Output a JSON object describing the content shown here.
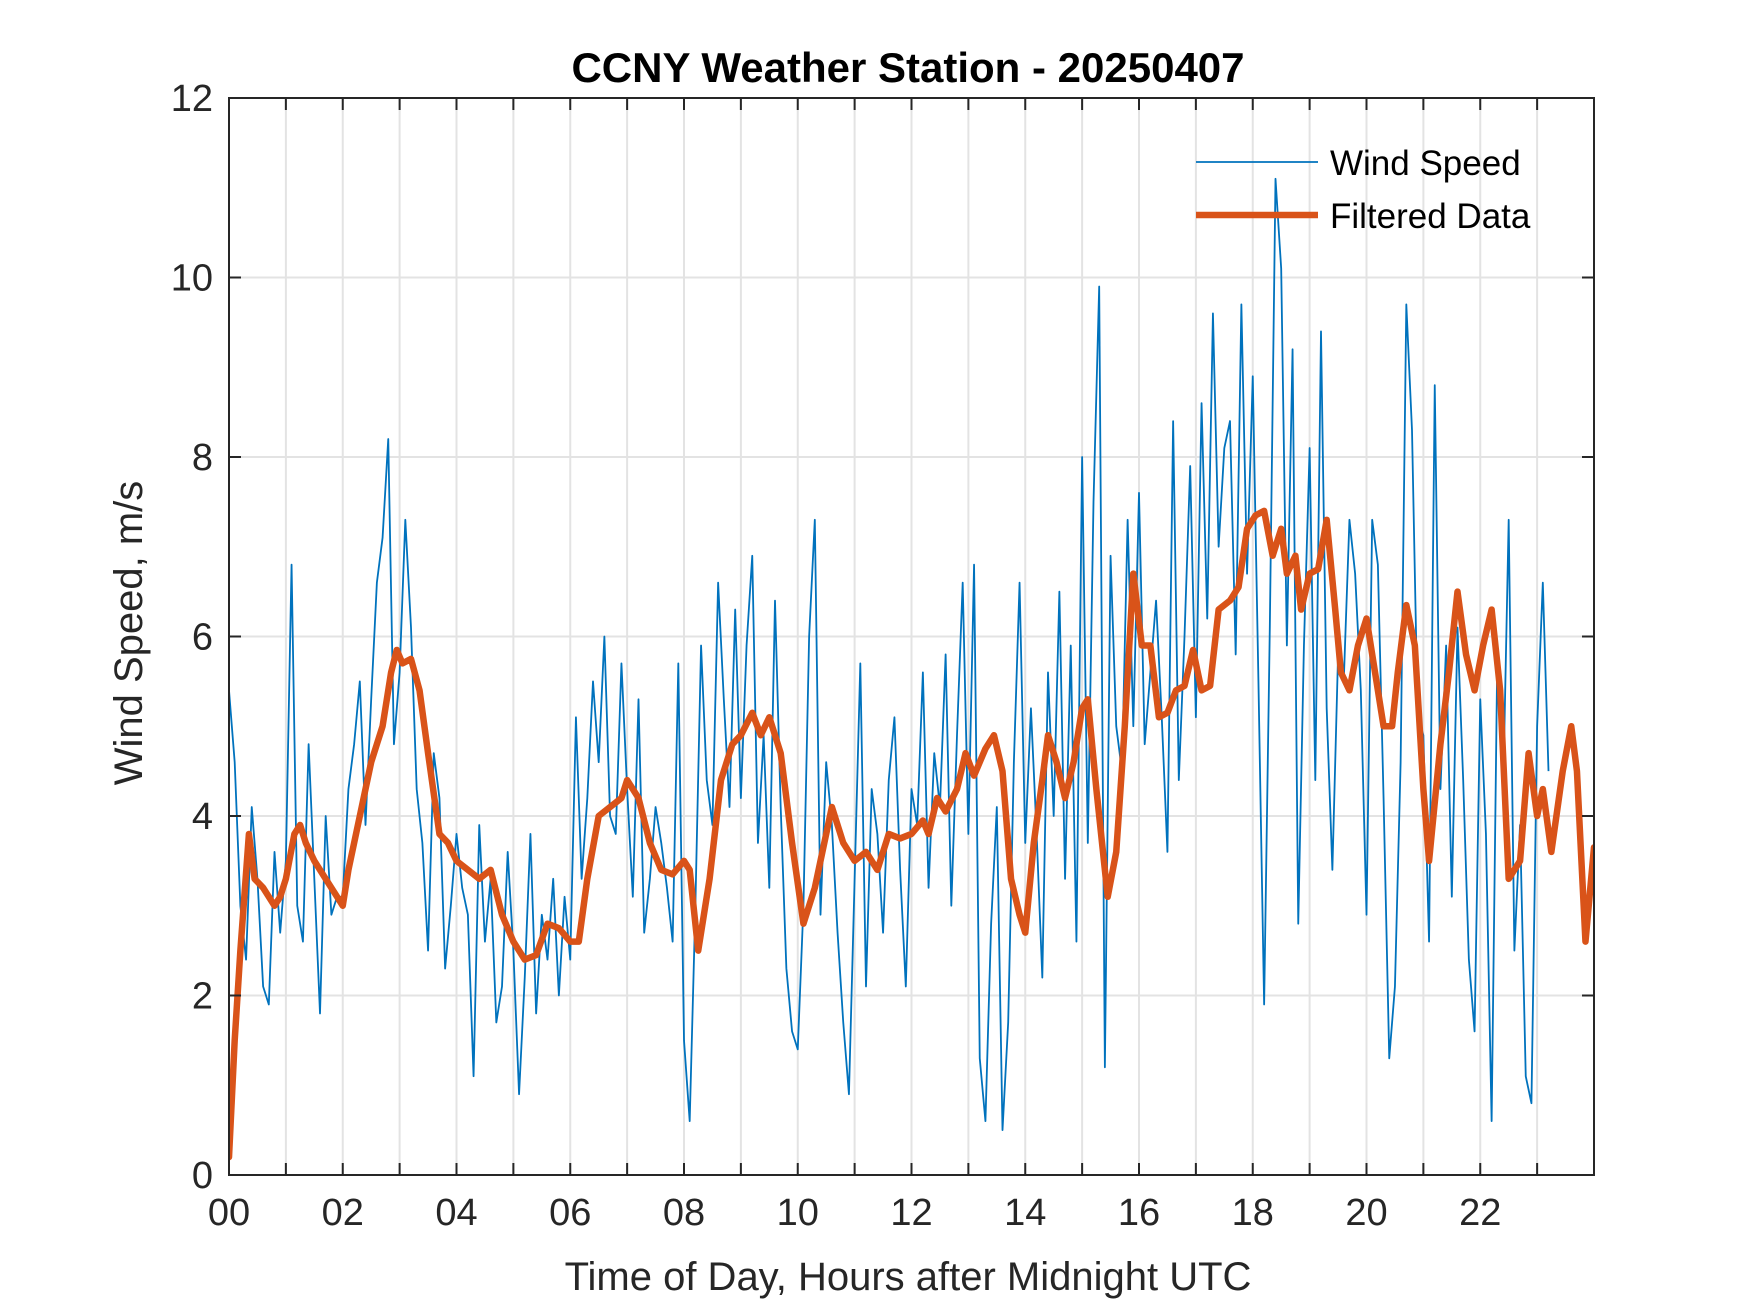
{
  "chart_data": {
    "type": "line",
    "title": "CCNY Weather Station - 20250407",
    "xlabel": "Time of Day, Hours after Midnight UTC",
    "ylabel": "Wind Speed, m/s",
    "xlim": [
      0,
      24
    ],
    "ylim": [
      0,
      12
    ],
    "xticks": [
      0,
      2,
      4,
      6,
      8,
      10,
      12,
      14,
      16,
      18,
      20,
      22
    ],
    "xtick_labels": [
      "00",
      "02",
      "04",
      "06",
      "08",
      "10",
      "12",
      "14",
      "16",
      "18",
      "20",
      "22"
    ],
    "xminor_step": 1,
    "yticks": [
      0,
      2,
      4,
      6,
      8,
      10,
      12
    ],
    "ytick_labels": [
      "0",
      "2",
      "4",
      "6",
      "8",
      "10",
      "12"
    ],
    "grid": true,
    "legend": {
      "position": "top-right",
      "entries": [
        "Wind Speed",
        "Filtered Data"
      ]
    },
    "series": [
      {
        "name": "Wind Speed",
        "color": "#0072BD",
        "x_step": 0.1,
        "x_start": 0,
        "values": [
          5.4,
          4.6,
          3.0,
          2.4,
          4.1,
          3.3,
          2.1,
          1.9,
          3.6,
          2.7,
          3.5,
          6.8,
          3.0,
          2.6,
          4.8,
          3.3,
          1.8,
          4.0,
          2.9,
          3.1,
          3.1,
          4.3,
          4.8,
          5.5,
          3.9,
          5.3,
          6.6,
          7.1,
          8.2,
          4.8,
          5.6,
          7.3,
          6.1,
          4.3,
          3.7,
          2.5,
          4.7,
          4.2,
          2.3,
          3.0,
          3.8,
          3.2,
          2.9,
          1.1,
          3.9,
          2.6,
          3.3,
          1.7,
          2.1,
          3.6,
          2.5,
          0.9,
          2.2,
          3.8,
          1.8,
          2.9,
          2.4,
          3.3,
          2.0,
          3.1,
          2.4,
          5.1,
          3.3,
          4.2,
          5.5,
          4.6,
          6.0,
          4.0,
          3.8,
          5.7,
          4.3,
          3.1,
          5.3,
          2.7,
          3.3,
          4.1,
          3.7,
          3.2,
          2.6,
          5.7,
          1.5,
          0.6,
          3.0,
          5.9,
          4.4,
          3.9,
          6.6,
          5.3,
          4.1,
          6.3,
          4.2,
          5.9,
          6.9,
          3.7,
          4.9,
          3.2,
          6.4,
          4.1,
          2.3,
          1.6,
          1.4,
          3.0,
          6.0,
          7.3,
          2.9,
          4.6,
          3.9,
          2.7,
          1.7,
          0.9,
          3.3,
          5.7,
          2.1,
          4.3,
          3.8,
          2.7,
          4.4,
          5.1,
          3.4,
          2.1,
          4.3,
          3.9,
          5.6,
          3.2,
          4.7,
          4.1,
          5.8,
          3.0,
          4.9,
          6.6,
          3.8,
          6.8,
          1.3,
          0.6,
          2.8,
          4.1,
          0.5,
          1.7,
          4.6,
          6.6,
          3.7,
          5.2,
          3.8,
          2.2,
          5.6,
          4.0,
          6.5,
          3.3,
          5.9,
          2.6,
          8.0,
          3.7,
          7.5,
          9.9,
          1.2,
          6.9,
          5.0,
          4.5,
          7.3,
          5.0,
          7.6,
          4.8,
          5.6,
          6.4,
          5.1,
          3.6,
          8.4,
          4.4,
          6.0,
          7.9,
          5.1,
          8.6,
          6.2,
          9.6,
          7.0,
          8.1,
          8.4,
          5.8,
          9.7,
          6.7,
          8.9,
          5.5,
          1.9,
          6.1,
          11.1,
          10.1,
          5.9,
          9.2,
          2.8,
          5.9,
          8.1,
          4.4,
          9.4,
          5.2,
          3.4,
          5.8,
          5.5,
          7.3,
          6.7,
          5.4,
          2.9,
          7.3,
          6.8,
          4.2,
          1.3,
          2.1,
          4.6,
          9.7,
          8.3,
          5.1,
          4.9,
          2.6,
          8.8,
          4.3,
          5.9,
          3.1,
          6.1,
          4.4,
          2.4,
          1.6,
          5.3,
          3.8,
          0.6,
          5.8,
          4.2,
          7.3,
          2.5,
          3.9,
          1.1,
          0.8,
          5.0,
          6.6,
          4.5
        ]
      },
      {
        "name": "Filtered Data",
        "color": "#D95319",
        "x": [
          0.0,
          0.1,
          0.2,
          0.35,
          0.45,
          0.6,
          0.8,
          0.9,
          1.0,
          1.15,
          1.25,
          1.35,
          1.5,
          1.7,
          1.9,
          2.0,
          2.1,
          2.3,
          2.5,
          2.7,
          2.85,
          2.95,
          3.05,
          3.2,
          3.35,
          3.5,
          3.7,
          3.85,
          4.0,
          4.2,
          4.4,
          4.6,
          4.8,
          5.0,
          5.2,
          5.4,
          5.6,
          5.8,
          6.0,
          6.15,
          6.3,
          6.5,
          6.7,
          6.9,
          7.0,
          7.2,
          7.4,
          7.6,
          7.8,
          8.0,
          8.1,
          8.25,
          8.45,
          8.65,
          8.85,
          9.0,
          9.2,
          9.35,
          9.5,
          9.7,
          9.9,
          10.1,
          10.3,
          10.5,
          10.6,
          10.8,
          11.0,
          11.2,
          11.4,
          11.6,
          11.8,
          12.0,
          12.2,
          12.3,
          12.45,
          12.6,
          12.8,
          12.95,
          13.1,
          13.3,
          13.45,
          13.6,
          13.75,
          13.9,
          14.0,
          14.15,
          14.3,
          14.4,
          14.55,
          14.7,
          14.85,
          15.0,
          15.1,
          15.25,
          15.45,
          15.6,
          15.75,
          15.9,
          16.05,
          16.2,
          16.35,
          16.5,
          16.65,
          16.8,
          16.95,
          17.1,
          17.25,
          17.4,
          17.6,
          17.75,
          17.9,
          18.05,
          18.2,
          18.35,
          18.5,
          18.6,
          18.75,
          18.85,
          19.0,
          19.15,
          19.3,
          19.45,
          19.55,
          19.7,
          19.85,
          20.0,
          20.15,
          20.3,
          20.45,
          20.55,
          20.7,
          20.85,
          21.0,
          21.1,
          21.3,
          21.45,
          21.6,
          21.75,
          21.9,
          22.05,
          22.2,
          22.35,
          22.5,
          22.7,
          22.85,
          23.0,
          23.1,
          23.25,
          23.45,
          23.6,
          23.7,
          23.85,
          24.0
        ],
        "values": [
          0.2,
          1.5,
          2.5,
          3.8,
          3.3,
          3.2,
          3.0,
          3.1,
          3.3,
          3.8,
          3.9,
          3.7,
          3.5,
          3.3,
          3.1,
          3.0,
          3.4,
          4.0,
          4.6,
          5.0,
          5.6,
          5.85,
          5.7,
          5.75,
          5.4,
          4.7,
          3.8,
          3.7,
          3.5,
          3.4,
          3.3,
          3.4,
          2.9,
          2.6,
          2.4,
          2.45,
          2.8,
          2.75,
          2.6,
          2.6,
          3.3,
          4.0,
          4.1,
          4.2,
          4.4,
          4.2,
          3.7,
          3.4,
          3.35,
          3.5,
          3.4,
          2.5,
          3.3,
          4.4,
          4.8,
          4.9,
          5.15,
          4.9,
          5.1,
          4.7,
          3.7,
          2.8,
          3.2,
          3.8,
          4.1,
          3.7,
          3.5,
          3.6,
          3.4,
          3.8,
          3.75,
          3.8,
          3.95,
          3.8,
          4.2,
          4.05,
          4.3,
          4.7,
          4.45,
          4.75,
          4.9,
          4.5,
          3.3,
          2.9,
          2.7,
          3.7,
          4.4,
          4.9,
          4.6,
          4.2,
          4.6,
          5.2,
          5.3,
          4.3,
          3.1,
          3.6,
          5.0,
          6.7,
          5.9,
          5.9,
          5.1,
          5.15,
          5.4,
          5.45,
          5.85,
          5.4,
          5.45,
          6.3,
          6.4,
          6.55,
          7.2,
          7.35,
          7.4,
          6.9,
          7.2,
          6.7,
          6.9,
          6.3,
          6.7,
          6.75,
          7.3,
          6.3,
          5.6,
          5.4,
          5.9,
          6.2,
          5.6,
          5.0,
          5.0,
          5.6,
          6.35,
          5.9,
          4.3,
          3.5,
          4.8,
          5.6,
          6.5,
          5.8,
          5.4,
          5.9,
          6.3,
          5.4,
          3.3,
          3.5,
          4.7,
          4.0,
          4.3,
          3.6,
          4.5,
          5.0,
          4.5,
          2.6,
          3.65
        ]
      }
    ]
  }
}
